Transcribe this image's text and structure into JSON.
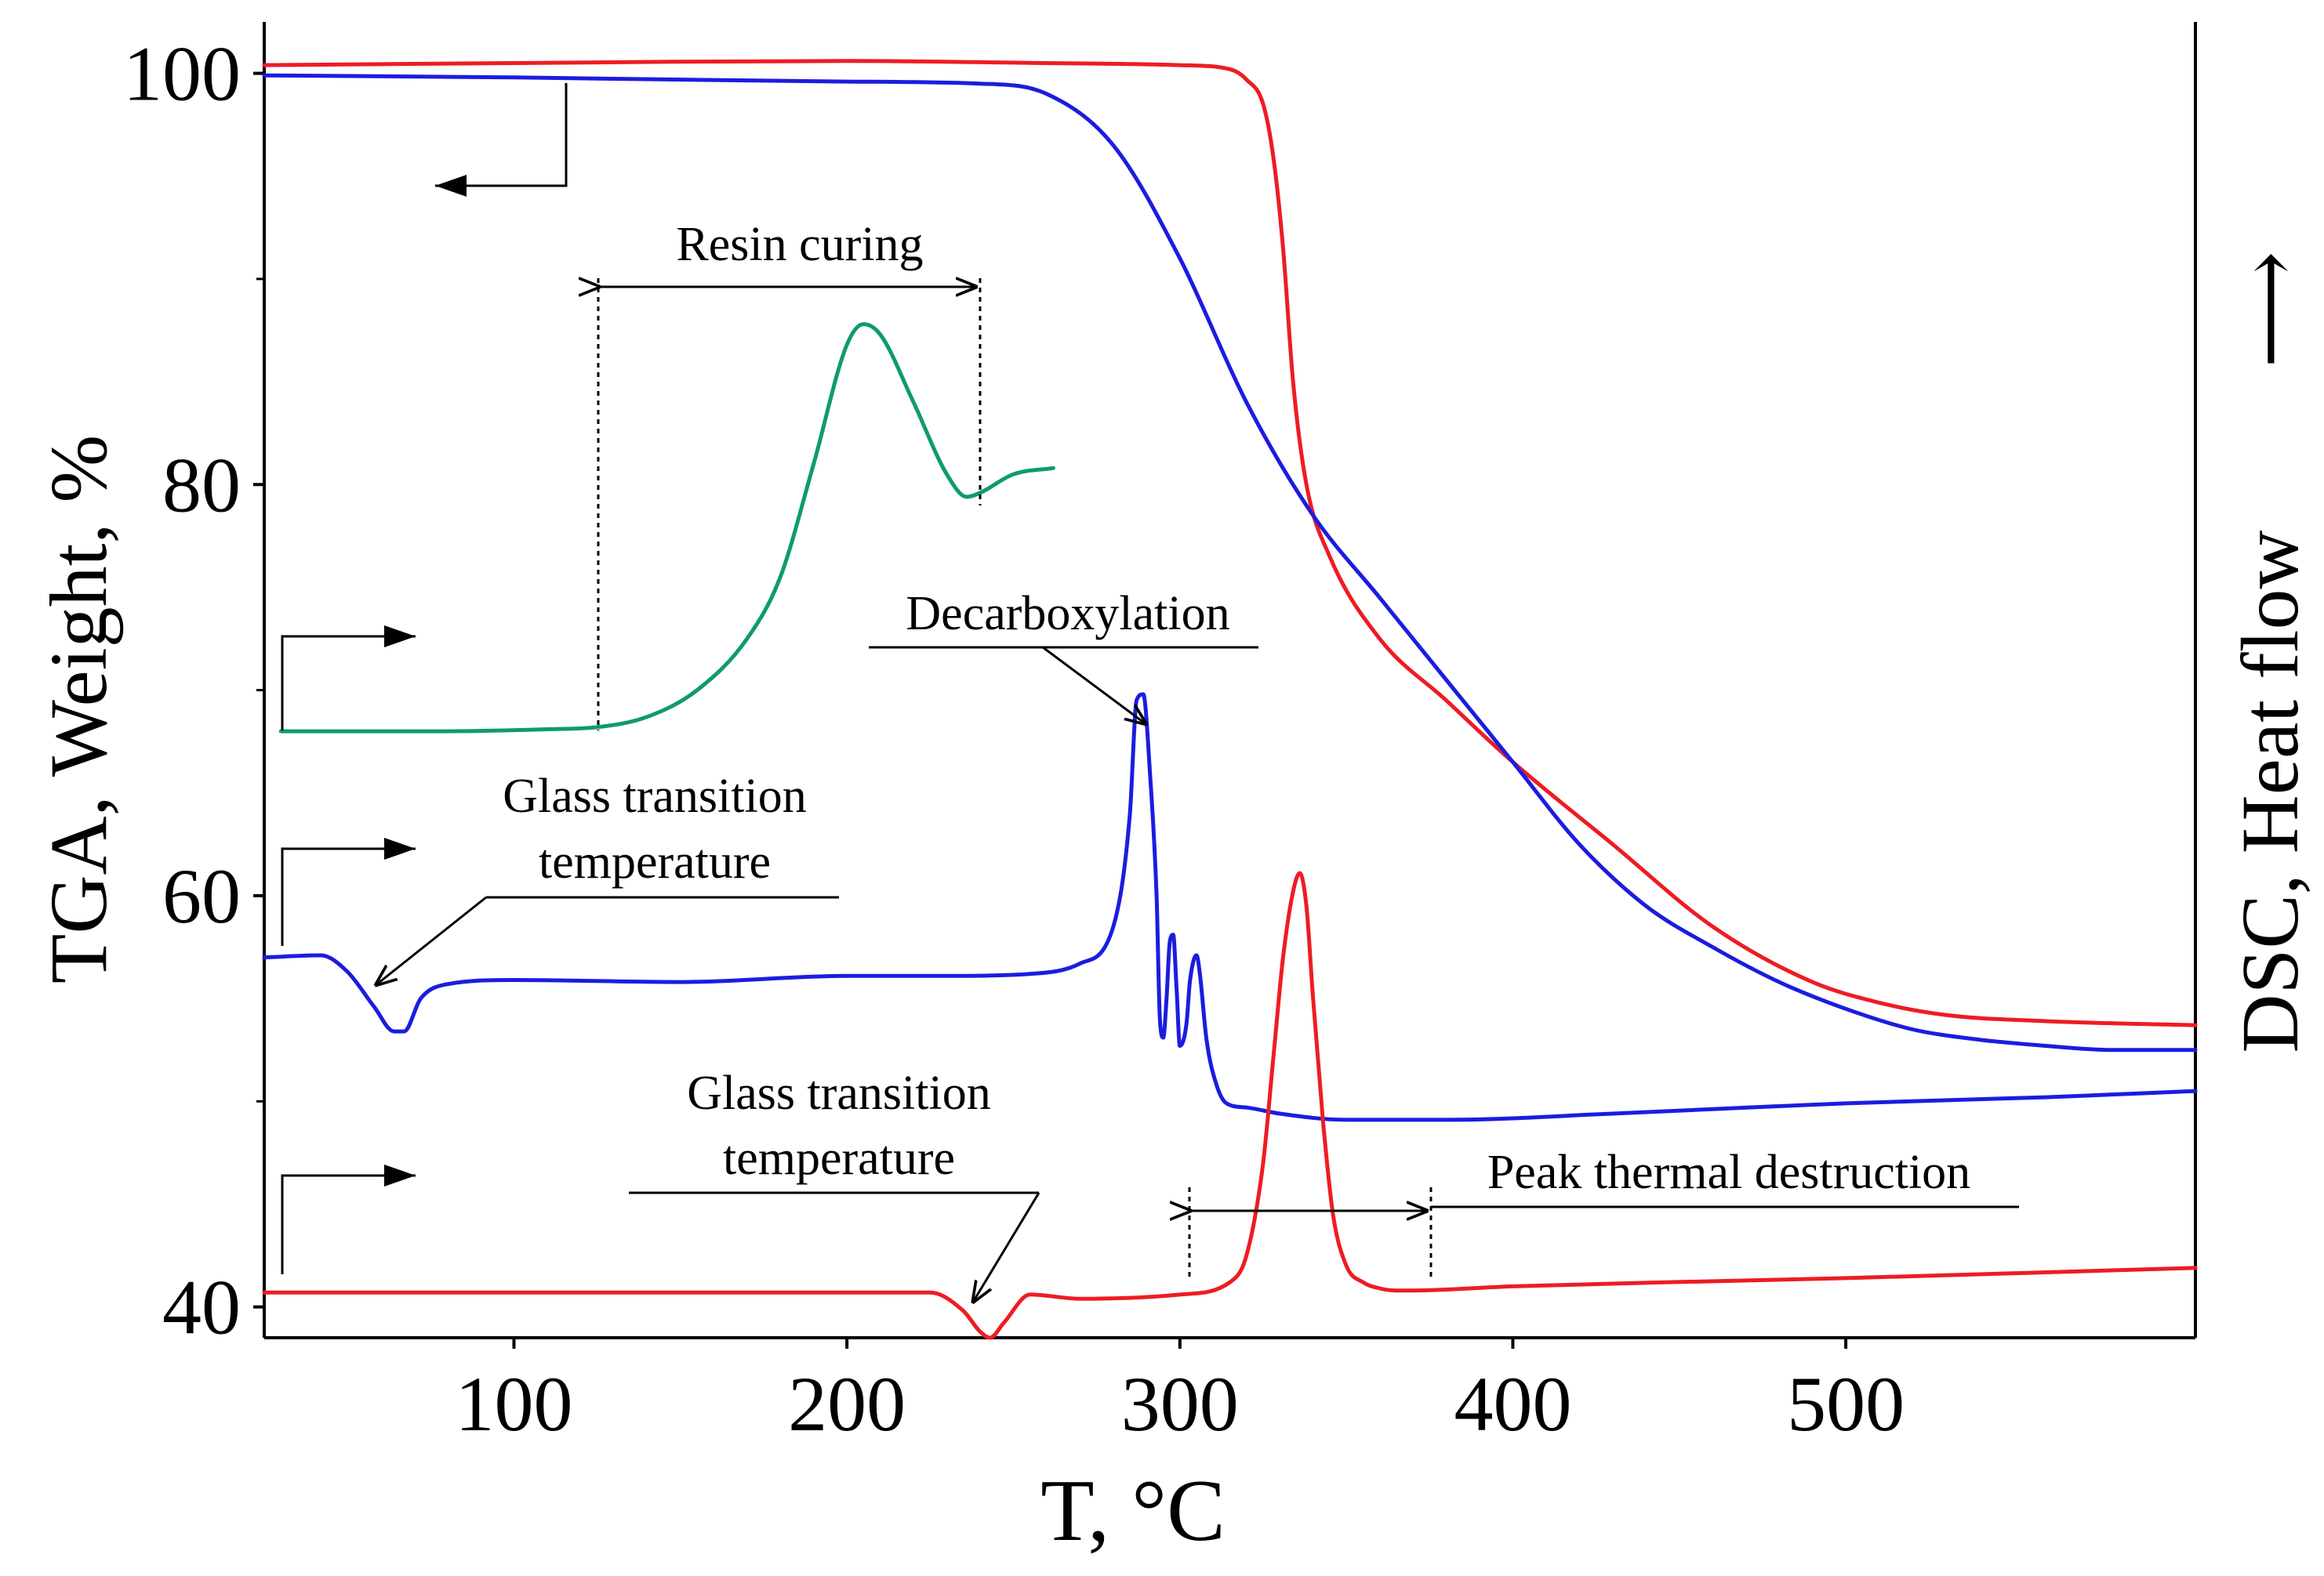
{
  "chart_data": {
    "type": "line",
    "title": "",
    "xlabel": "T, °C",
    "ylabel": "TGA, Weight, %",
    "y2label": "DSC, Heat flow",
    "y2arrow": "⟶",
    "xlim": [
      25,
      605
    ],
    "ylim": [
      38.5,
      102.5
    ],
    "xticks": [
      100,
      200,
      300,
      400,
      500
    ],
    "yticks": [
      40,
      60,
      80,
      100
    ],
    "grid": false,
    "colors": {
      "red": "#ee1c24",
      "blue": "#1c1ce0",
      "green": "#0f9b6a"
    },
    "series": [
      {
        "name": "TGA red",
        "color": "#ee1c24",
        "x": [
          25,
          100,
          200,
          260,
          300,
          315,
          320,
          325,
          328,
          331,
          334,
          338,
          345,
          360,
          380,
          400,
          430,
          460,
          490,
          510,
          530,
          560,
          605
        ],
        "y": [
          100.4,
          100.5,
          100.6,
          100.5,
          100.4,
          100.2,
          99.7,
          98.5,
          96.0,
          91.5,
          85.0,
          80.0,
          76.5,
          72.5,
          69.5,
          66.5,
          62.5,
          58.5,
          55.8,
          54.8,
          54.2,
          53.9,
          53.7
        ]
      },
      {
        "name": "TGA blue",
        "color": "#1c1ce0",
        "x": [
          25,
          100,
          200,
          240,
          260,
          280,
          300,
          320,
          340,
          360,
          380,
          400,
          420,
          440,
          460,
          480,
          500,
          520,
          540,
          560,
          580,
          605
        ],
        "y": [
          99.9,
          99.8,
          99.6,
          99.5,
          99.0,
          96.5,
          91.0,
          84.0,
          78.5,
          74.5,
          70.5,
          66.5,
          62.5,
          59.5,
          57.5,
          55.8,
          54.5,
          53.5,
          53.0,
          52.7,
          52.5,
          52.5
        ]
      },
      {
        "name": "DSC green",
        "color": "#0f9b6a",
        "x": [
          30,
          80,
          110,
          125,
          140,
          155,
          170,
          180,
          190,
          200,
          205,
          210,
          220,
          230,
          236,
          240,
          250,
          262
        ],
        "y": [
          68.0,
          68.0,
          68.1,
          68.2,
          68.7,
          70.0,
          72.5,
          75.5,
          81.0,
          86.8,
          87.8,
          87.3,
          84.0,
          80.5,
          79.4,
          79.6,
          80.5,
          80.8
        ]
      },
      {
        "name": "DSC blue",
        "color": "#1c1ce0",
        "x": [
          25,
          42,
          50,
          58,
          64,
          67,
          72,
          80,
          100,
          150,
          200,
          230,
          255,
          270,
          280,
          285,
          287,
          289,
          291,
          293,
          294,
          295,
          296,
          297,
          298,
          299,
          300,
          302,
          303,
          305,
          306,
          308,
          311,
          314,
          320,
          330,
          350,
          380,
          430,
          500,
          560,
          605
        ],
        "y": [
          57.0,
          57.1,
          56.3,
          54.6,
          53.4,
          53.4,
          55.0,
          55.7,
          55.9,
          55.8,
          56.1,
          56.1,
          56.2,
          56.7,
          58.5,
          64.0,
          69.5,
          69.8,
          66.0,
          60.0,
          54.0,
          53.1,
          55.0,
          57.8,
          58.1,
          55.5,
          52.7,
          53.8,
          55.8,
          57.1,
          56.2,
          53.0,
          50.8,
          49.9,
          49.7,
          49.4,
          49.1,
          49.1,
          49.4,
          49.9,
          50.2,
          50.5
        ]
      },
      {
        "name": "DSC red",
        "color": "#ee1c24",
        "x": [
          25,
          100,
          200,
          225,
          235,
          240,
          243,
          247,
          255,
          270,
          300,
          315,
          320,
          325,
          328,
          331,
          334,
          336,
          338,
          340,
          343,
          346,
          350,
          355,
          360,
          365,
          370,
          400,
          500,
          605
        ],
        "y": [
          40.7,
          40.7,
          40.7,
          40.7,
          39.8,
          38.8,
          38.5,
          39.2,
          40.6,
          40.4,
          40.6,
          41.2,
          42.5,
          47.0,
          52.0,
          57.0,
          60.2,
          61.1,
          59.5,
          55.0,
          49.0,
          44.5,
          42.0,
          41.2,
          40.9,
          40.8,
          40.8,
          41.0,
          41.4,
          41.9
        ]
      }
    ],
    "annotations": [
      {
        "text": "Resin curing"
      },
      {
        "text": "Decarboxylation"
      },
      {
        "text": "Glass transition"
      },
      {
        "text": "temperature"
      },
      {
        "text": "Glass transition"
      },
      {
        "text": "temperature"
      },
      {
        "text": "Peak thermal destruction"
      }
    ]
  }
}
